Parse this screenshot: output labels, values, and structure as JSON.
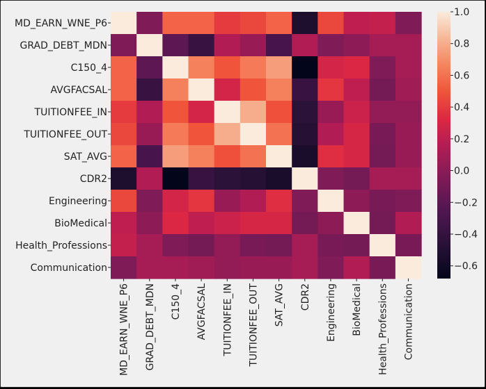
{
  "chart_data": {
    "type": "heatmap",
    "title": "",
    "xlabel": "",
    "ylabel": "",
    "labels": [
      "MD_EARN_WNE_P6",
      "GRAD_DEBT_MDN",
      "C150_4",
      "AVGFACSAL",
      "TUITIONFEE_IN",
      "TUITIONFEE_OUT",
      "SAT_AVG",
      "CDR2",
      "Engineering",
      "BioMedical",
      "Health_Professions",
      "Communication"
    ],
    "matrix": [
      [
        1.0,
        -0.05,
        0.55,
        0.55,
        0.4,
        0.45,
        0.55,
        -0.52,
        0.45,
        0.2,
        0.22,
        -0.05
      ],
      [
        -0.05,
        1.0,
        -0.2,
        -0.38,
        0.15,
        0.05,
        -0.3,
        0.15,
        -0.05,
        0.0,
        0.1,
        0.1
      ],
      [
        0.55,
        -0.2,
        1.0,
        0.65,
        0.5,
        0.63,
        0.75,
        -0.68,
        0.28,
        0.32,
        -0.05,
        0.1
      ],
      [
        0.55,
        -0.38,
        0.65,
        1.0,
        0.28,
        0.5,
        0.65,
        -0.38,
        0.38,
        0.2,
        -0.1,
        0.08
      ],
      [
        0.4,
        0.15,
        0.5,
        0.28,
        1.0,
        0.8,
        0.48,
        -0.45,
        0.05,
        0.25,
        0.03,
        0.03
      ],
      [
        0.45,
        0.05,
        0.63,
        0.5,
        0.8,
        1.0,
        0.6,
        -0.48,
        0.15,
        0.3,
        -0.08,
        0.05
      ],
      [
        0.55,
        -0.3,
        0.75,
        0.65,
        0.48,
        0.6,
        1.0,
        -0.55,
        0.35,
        0.3,
        -0.1,
        0.05
      ],
      [
        -0.52,
        0.15,
        -0.68,
        -0.38,
        -0.45,
        -0.48,
        -0.55,
        1.0,
        -0.05,
        -0.1,
        0.1,
        0.1
      ],
      [
        0.45,
        -0.05,
        0.28,
        0.38,
        0.05,
        0.15,
        0.35,
        -0.05,
        1.0,
        0.0,
        -0.08,
        -0.05
      ],
      [
        0.2,
        0.0,
        0.32,
        0.2,
        0.25,
        0.3,
        0.3,
        -0.1,
        0.0,
        1.0,
        -0.1,
        0.15
      ],
      [
        0.22,
        0.1,
        -0.05,
        -0.1,
        0.03,
        -0.08,
        -0.1,
        0.1,
        -0.08,
        -0.1,
        1.0,
        -0.08
      ],
      [
        -0.05,
        0.1,
        0.1,
        0.08,
        0.03,
        0.05,
        0.05,
        0.1,
        -0.05,
        0.15,
        -0.08,
        1.0
      ]
    ],
    "vmin": -0.68,
    "vmax": 1.0,
    "colormap": "rocket",
    "colorbar": {
      "position": "right",
      "ticks": [
        1.0,
        0.8,
        0.6,
        0.4,
        0.2,
        0.0,
        -0.2,
        -0.4,
        -0.6
      ],
      "tick_labels": [
        "1.0",
        "0.8",
        "0.6",
        "0.4",
        "0.2",
        "0.0",
        "−0.2",
        "−0.4",
        "−0.6"
      ]
    }
  },
  "colors": {
    "background": "#f0f0f0",
    "outer": "#000000",
    "text": "#222222"
  }
}
